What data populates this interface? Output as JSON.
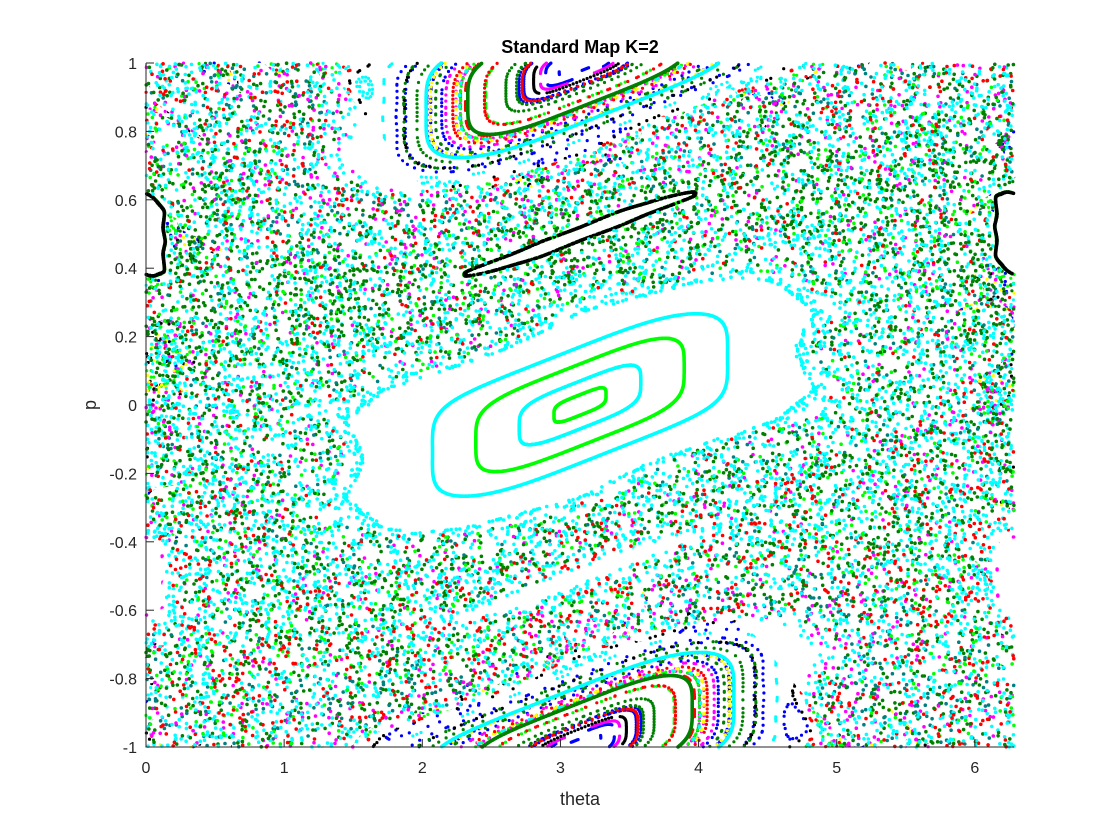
{
  "chart_data": {
    "type": "scatter",
    "title": "Standard Map K=2",
    "xlabel": "theta",
    "ylabel": "p",
    "xlim": [
      0,
      6.2832
    ],
    "ylim": [
      -1,
      1
    ],
    "x_ticks": [
      "0",
      "1",
      "2",
      "3",
      "4",
      "5",
      "6"
    ],
    "y_ticks": [
      "-1",
      "-0.8",
      "-0.6",
      "-0.4",
      "-0.2",
      "0",
      "0.2",
      "0.4",
      "0.6",
      "0.8",
      "1"
    ],
    "grid": false,
    "legend": "none",
    "map": "standard",
    "K": 2,
    "colors": [
      "#0000ff",
      "#ff0000",
      "#00ff00",
      "#ff00ff",
      "#00ffff",
      "#000000",
      "#ffff00",
      "#008000"
    ],
    "chaotic_sea": {
      "description_colors": [
        "#0000ff",
        "#ff00ff",
        "#00ff00",
        "#000000",
        "#ffff00",
        "#008000",
        "#ff0000",
        "#00ffff"
      ]
    },
    "island_orbits": [
      {
        "color": "#00ff00",
        "theta0": 3.1416,
        "p0": 0.03
      },
      {
        "color": "#00ffff",
        "theta0": 3.1416,
        "p0": 0.07
      },
      {
        "color": "#00ff00",
        "theta0": 3.1416,
        "p0": 0.12
      },
      {
        "color": "#00ffff",
        "theta0": 3.1416,
        "p0": 0.17
      },
      {
        "color": "#008000",
        "theta0": 3.1416,
        "p0": 0.3
      },
      {
        "color": "#008080",
        "theta0": 3.1416,
        "p0": 0.33
      },
      {
        "color": "#00ffff",
        "theta0": 3.1416,
        "p0": 0.36
      },
      {
        "color": "#ff00ff",
        "theta0": 3.1416,
        "p0": 0.39
      },
      {
        "color": "#00ffff",
        "theta0": 3.1416,
        "p0": 0.42
      },
      {
        "color": "#00ff00",
        "theta0": 3.1416,
        "p0": 0.45
      },
      {
        "color": "#00ff00",
        "theta0": 3.1416,
        "p0": 0.48
      },
      {
        "color": "#000000",
        "theta0": 3.1416,
        "p0": 0.52
      },
      {
        "color": "#00ffff",
        "theta0": 3.1416,
        "p0": 0.56
      },
      {
        "color": "#008000",
        "theta0": 3.1416,
        "p0": 0.6
      },
      {
        "color": "#00ffff",
        "theta0": 3.1416,
        "p0": 0.63
      },
      {
        "color": "#ff0000",
        "theta0": 3.1416,
        "p0": 0.67
      }
    ],
    "secondary_islands": [
      {
        "color": "#008000",
        "theta0": 0.05,
        "p0": 0.85
      },
      {
        "color": "#00ffff",
        "theta0": 0.09,
        "p0": 0.85
      },
      {
        "color": "#008000",
        "theta0": 3.2,
        "p0": 0.88
      },
      {
        "color": "#00ffff",
        "theta0": 3.25,
        "p0": 0.84
      }
    ]
  }
}
